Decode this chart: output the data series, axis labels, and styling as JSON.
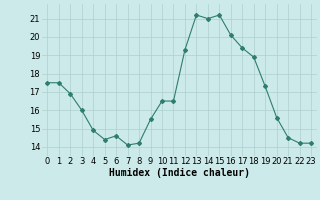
{
  "x": [
    0,
    1,
    2,
    3,
    4,
    5,
    6,
    7,
    8,
    9,
    10,
    11,
    12,
    13,
    14,
    15,
    16,
    17,
    18,
    19,
    20,
    21,
    22,
    23
  ],
  "y": [
    17.5,
    17.5,
    16.9,
    16.0,
    14.9,
    14.4,
    14.6,
    14.1,
    14.2,
    15.5,
    16.5,
    16.5,
    19.3,
    21.2,
    21.0,
    21.2,
    20.1,
    19.4,
    18.9,
    17.3,
    15.6,
    14.5,
    14.2,
    14.2
  ],
  "line_color": "#2e7d6e",
  "marker": "D",
  "marker_size": 2.0,
  "bg_color": "#cdeaea",
  "grid_color": "#aecfcf",
  "xlabel": "Humidex (Indice chaleur)",
  "xlabel_fontsize": 7,
  "tick_fontsize": 6,
  "ylim": [
    13.5,
    21.8
  ],
  "yticks": [
    14,
    15,
    16,
    17,
    18,
    19,
    20,
    21
  ],
  "xticks": [
    0,
    1,
    2,
    3,
    4,
    5,
    6,
    7,
    8,
    9,
    10,
    11,
    12,
    13,
    14,
    15,
    16,
    17,
    18,
    19,
    20,
    21,
    22,
    23
  ]
}
